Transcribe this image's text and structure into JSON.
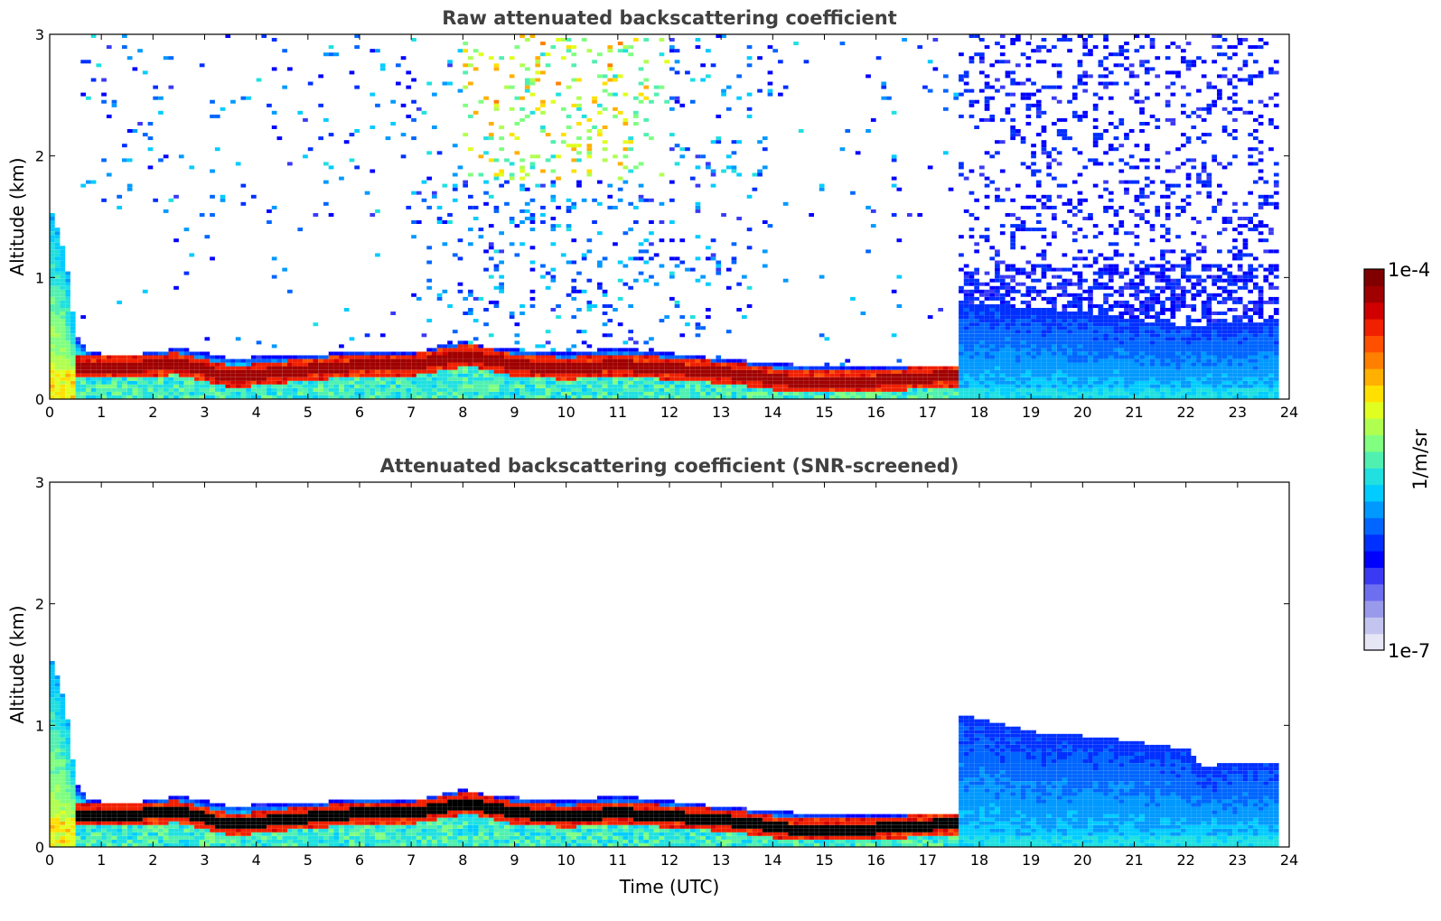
{
  "chart_data": [
    {
      "type": "heatmap",
      "title": "Raw attenuated backscattering coefficient",
      "xlabel": "",
      "ylabel": "Altitude (km)",
      "xlim": [
        0,
        24
      ],
      "ylim": [
        0,
        3
      ],
      "x_ticks": [
        "0",
        "1",
        "2",
        "3",
        "4",
        "5",
        "6",
        "7",
        "8",
        "9",
        "10",
        "11",
        "12",
        "13",
        "14",
        "15",
        "16",
        "17",
        "18",
        "19",
        "20",
        "21",
        "22",
        "23",
        "24"
      ],
      "y_ticks": [
        "0",
        "1",
        "2",
        "3"
      ],
      "screened": false
    },
    {
      "type": "heatmap",
      "title": "Attenuated backscattering coefficient (SNR-screened)",
      "xlabel": "Time (UTC)",
      "ylabel": "Altitude (km)",
      "xlim": [
        0,
        24
      ],
      "ylim": [
        0,
        3
      ],
      "x_ticks": [
        "0",
        "1",
        "2",
        "3",
        "4",
        "5",
        "6",
        "7",
        "8",
        "9",
        "10",
        "11",
        "12",
        "13",
        "14",
        "15",
        "16",
        "17",
        "18",
        "19",
        "20",
        "21",
        "22",
        "23",
        "24"
      ],
      "y_ticks": [
        "0",
        "1",
        "2",
        "3"
      ],
      "screened": true
    }
  ],
  "colorbar": {
    "label": "1/m/sr",
    "max_label": "1e-4",
    "min_label": "1e-7",
    "colormap": [
      "#e6e6f5",
      "#c4c4f0",
      "#9a9aec",
      "#6e6ef0",
      "#3a3af5",
      "#0000ff",
      "#0030ff",
      "#0066ff",
      "#0099ff",
      "#00ccff",
      "#20e0e0",
      "#50f0b0",
      "#80ff80",
      "#b0ff50",
      "#e0ff20",
      "#ffe000",
      "#ffb000",
      "#ff8000",
      "#ff5000",
      "#f02000",
      "#d00000",
      "#a00000",
      "#800000"
    ]
  },
  "profile": {
    "layer_top_km": [
      [
        0,
        1.6
      ],
      [
        0.3,
        1.3
      ],
      [
        0.55,
        0.5
      ],
      [
        0.8,
        0.38
      ],
      [
        1.5,
        0.36
      ],
      [
        2.5,
        0.42
      ],
      [
        3.5,
        0.34
      ],
      [
        5,
        0.36
      ],
      [
        6,
        0.4
      ],
      [
        7,
        0.38
      ],
      [
        8,
        0.48
      ],
      [
        8.5,
        0.42
      ],
      [
        10,
        0.38
      ],
      [
        11,
        0.42
      ],
      [
        12,
        0.38
      ],
      [
        13,
        0.33
      ],
      [
        14.5,
        0.28
      ],
      [
        16,
        0.26
      ],
      [
        17.5,
        0.28
      ]
    ],
    "peak_km": [
      [
        0.55,
        0.26
      ],
      [
        1.5,
        0.26
      ],
      [
        2.5,
        0.29
      ],
      [
        3.5,
        0.18
      ],
      [
        5,
        0.24
      ],
      [
        6,
        0.28
      ],
      [
        7,
        0.28
      ],
      [
        8.1,
        0.36
      ],
      [
        9,
        0.28
      ],
      [
        10,
        0.25
      ],
      [
        11,
        0.28
      ],
      [
        12,
        0.25
      ],
      [
        13,
        0.22
      ],
      [
        14.5,
        0.14
      ],
      [
        16,
        0.15
      ],
      [
        17.5,
        0.19
      ]
    ],
    "blue_top_raw_km": [
      [
        17.55,
        0.8
      ],
      [
        20,
        0.72
      ],
      [
        22,
        0.6
      ],
      [
        23.8,
        0.65
      ]
    ],
    "blue_top_screened_km": [
      [
        17.55,
        1.1
      ],
      [
        19,
        0.95
      ],
      [
        20.5,
        0.9
      ],
      [
        22.1,
        0.8
      ],
      [
        22.3,
        0.65
      ],
      [
        23,
        0.7
      ],
      [
        23.8,
        0.7
      ]
    ],
    "data_end_h": 23.8
  }
}
